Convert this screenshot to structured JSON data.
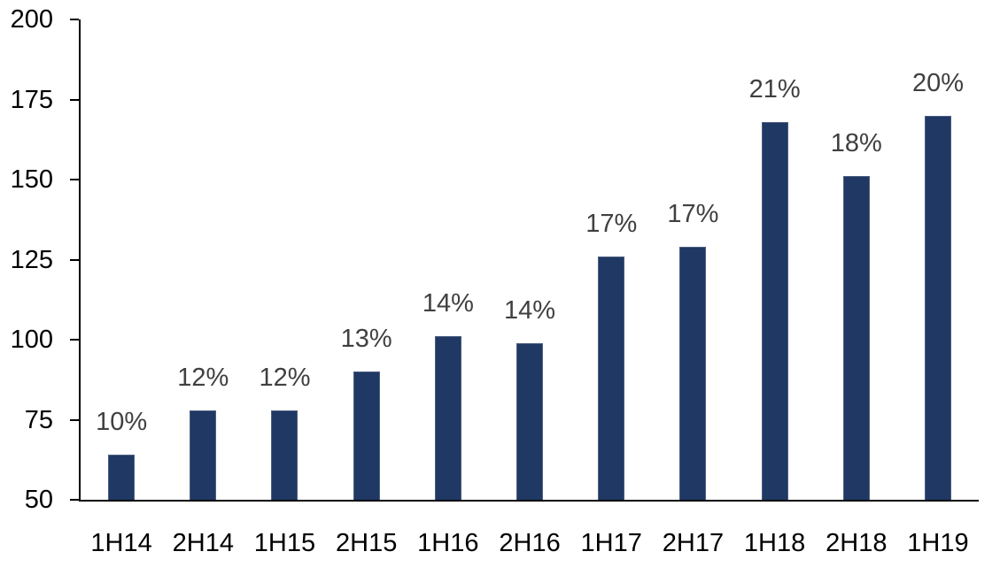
{
  "chart_data": {
    "type": "bar",
    "title": "",
    "xlabel": "",
    "ylabel": "",
    "categories": [
      "1H14",
      "2H14",
      "1H15",
      "2H15",
      "1H16",
      "2H16",
      "1H17",
      "2H17",
      "1H18",
      "2H18",
      "1H19"
    ],
    "values": [
      64,
      78,
      78,
      90,
      101,
      99,
      126,
      129,
      168,
      151,
      170
    ],
    "data_labels": [
      "10%",
      "12%",
      "12%",
      "13%",
      "14%",
      "14%",
      "17%",
      "17%",
      "21%",
      "18%",
      "20%"
    ],
    "ylim": [
      50,
      200
    ],
    "yticks": [
      50,
      75,
      100,
      125,
      150,
      175,
      200
    ],
    "grid": false,
    "legend": false,
    "colors": {
      "bar_fill": "#1F3864",
      "bar_border": "#4C5F7F",
      "data_label": "#404040",
      "axis": "#000000",
      "tick_label": "#000000",
      "background": "#ffffff"
    }
  }
}
